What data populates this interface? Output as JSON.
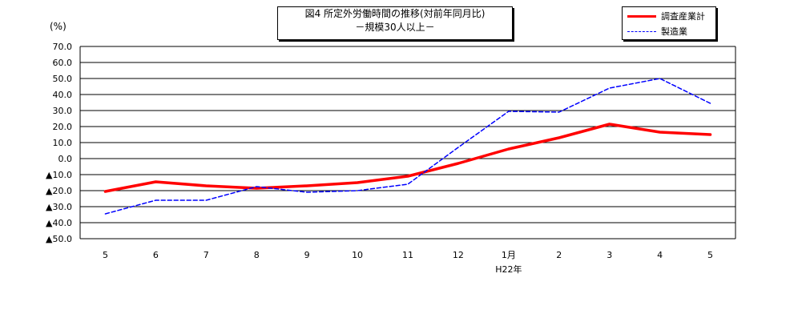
{
  "chart_data": {
    "type": "line",
    "title": "図4 所定外労働時間の推移(対前年同月比)",
    "subtitle": "－規模30人以上－",
    "ylabel": "(%)",
    "ylim": [
      -50,
      70
    ],
    "ytick_labels": [
      "70.0",
      "60.0",
      "50.0",
      "40.0",
      "30.0",
      "20.0",
      "10.0",
      "0.0",
      "▲10.0",
      "▲20.0",
      "▲30.0",
      "▲40.0",
      "▲50.0"
    ],
    "ytick_values": [
      70,
      60,
      50,
      40,
      30,
      20,
      10,
      0,
      -10,
      -20,
      -30,
      -40,
      -50
    ],
    "categories": [
      "5",
      "6",
      "7",
      "8",
      "9",
      "10",
      "11",
      "12",
      "1月",
      "2",
      "3",
      "4",
      "5"
    ],
    "xsublabel": "H22年",
    "grid": true,
    "legend_position": "top-right",
    "series": [
      {
        "name": "調査産業計",
        "color": "#ff0000",
        "style": "solid",
        "values": [
          -20.5,
          -14.5,
          -17,
          -18.5,
          -17,
          -15,
          -11,
          -3,
          6,
          13,
          21.5,
          16.5,
          15
        ]
      },
      {
        "name": "製造業",
        "color": "#0000ff",
        "style": "dashed",
        "values": [
          -34.5,
          -26,
          -26,
          -17.5,
          -21,
          -20,
          -16,
          7,
          29.5,
          29,
          44,
          50,
          34.5
        ]
      }
    ]
  }
}
